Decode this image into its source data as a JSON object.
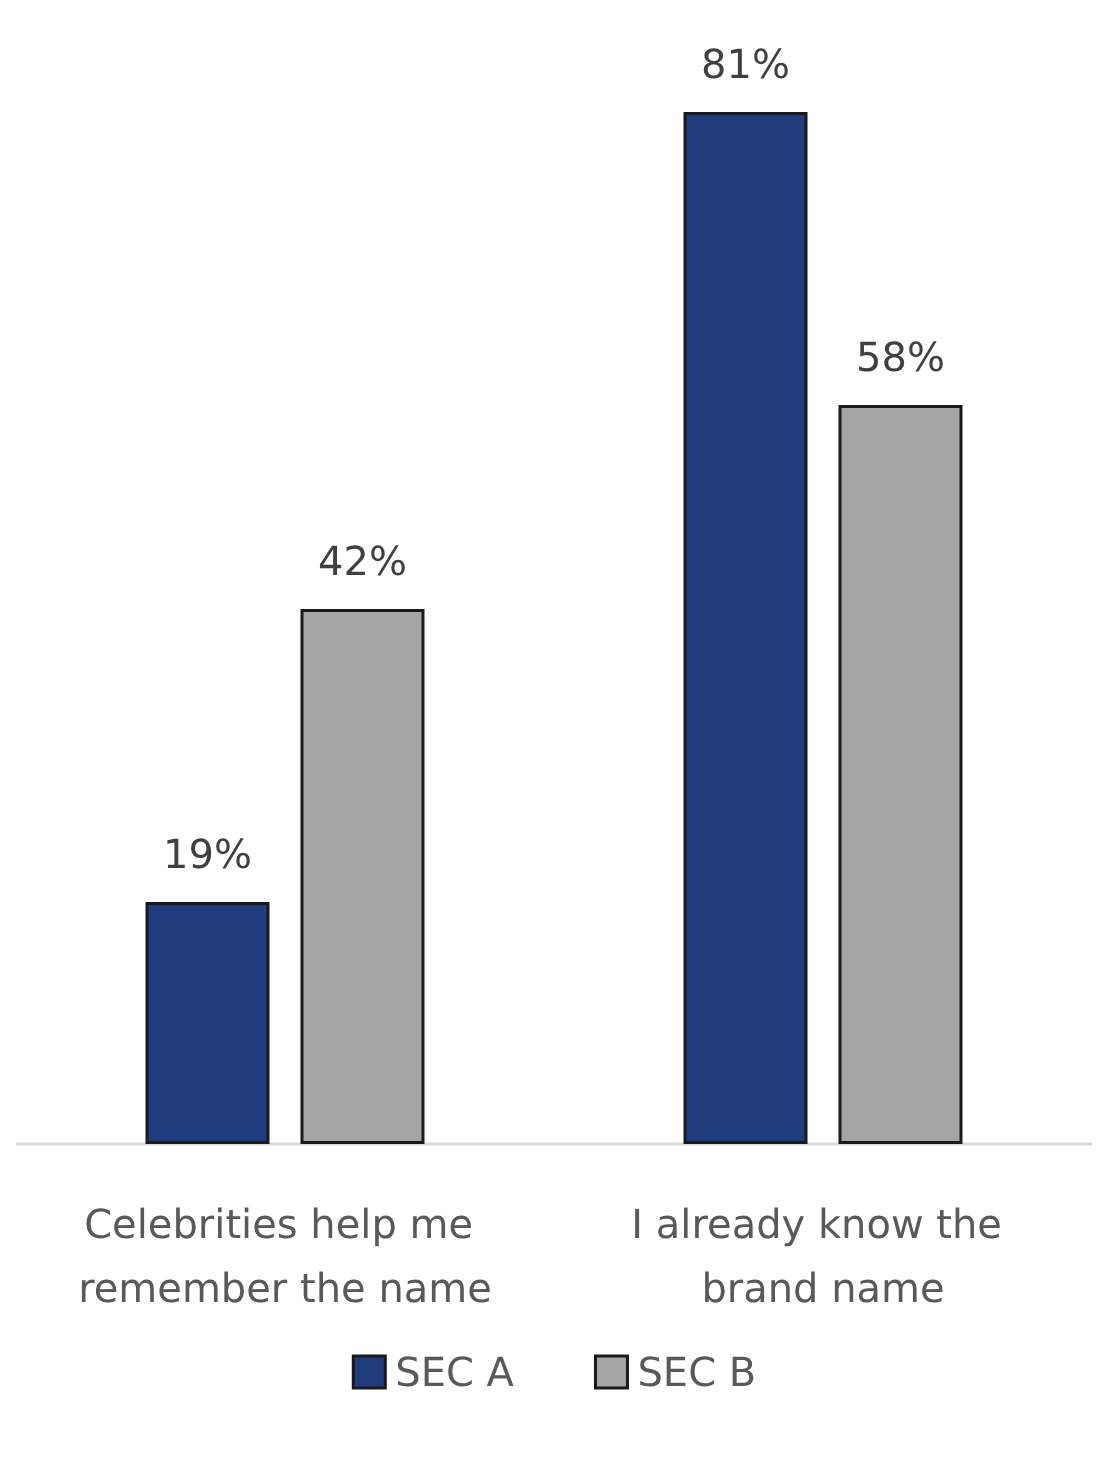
{
  "chart_data": {
    "type": "bar",
    "categories": [
      "Celebrities help me remember the name",
      "I already know the brand name"
    ],
    "series": [
      {
        "name": "SEC A",
        "color": "#1f3c7e",
        "values": [
          19,
          81
        ],
        "value_labels": [
          "19%",
          "81%"
        ]
      },
      {
        "name": "SEC B",
        "color": "#a5a5a5",
        "values": [
          42,
          58
        ],
        "value_labels": [
          "42%",
          "58%"
        ]
      }
    ],
    "legend": "bottom",
    "grid": false
  }
}
